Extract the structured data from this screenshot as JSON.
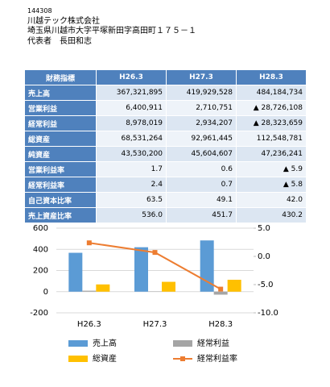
{
  "header": {
    "code": "144308",
    "company": "川越テック株式会社",
    "address": "埼玉県川越市大字平塚新田字高田町１７５－１",
    "representative": "代表者　長田和志"
  },
  "table": {
    "header": [
      "財務指標",
      "H26.3",
      "H27.3",
      "H28.3"
    ],
    "rows": [
      [
        "売上高",
        "367,321,895",
        "419,929,528",
        "484,184,734"
      ],
      [
        "営業利益",
        "6,400,911",
        "2,710,751",
        "▲ 28,726,108"
      ],
      [
        "経常利益",
        "8,978,019",
        "2,934,207",
        "▲ 28,323,659"
      ],
      [
        "総資産",
        "68,531,264",
        "92,961,445",
        "112,548,781"
      ],
      [
        "純資産",
        "43,530,200",
        "45,604,607",
        "47,236,241"
      ],
      [
        "営業利益率",
        "1.7",
        "0.6",
        "▲ 5.9"
      ],
      [
        "経常利益率",
        "2.4",
        "0.7",
        "▲ 5.8"
      ],
      [
        "自己資本比率",
        "63.5",
        "49.1",
        "42.0"
      ],
      [
        "売上資産比率",
        "536.0",
        "451.7",
        "430.2"
      ]
    ]
  },
  "chart_data": {
    "type": "bar",
    "categories": [
      "H26.3",
      "H27.3",
      "H28.3"
    ],
    "series": [
      {
        "name": "売上高",
        "color": "#5b9bd5",
        "values": [
          367.3,
          419.9,
          484.2
        ]
      },
      {
        "name": "経常利益",
        "color": "#a5a5a5",
        "values": [
          9.0,
          2.9,
          -28.3
        ]
      },
      {
        "name": "総資産",
        "color": "#ffc000",
        "values": [
          68.5,
          93.0,
          112.5
        ]
      },
      {
        "name": "経常利益率",
        "color": "#ed7d31",
        "type": "line",
        "axis": "y2",
        "values": [
          2.4,
          0.7,
          -5.8
        ]
      }
    ],
    "ylim": [
      -200,
      600
    ],
    "yticks": [
      -200,
      0,
      200,
      400,
      600
    ],
    "y2lim": [
      -10,
      5
    ],
    "y2ticks": [
      {
        "value": -10,
        "label": "-10.0"
      },
      {
        "value": -5,
        "label": "-5.0"
      },
      {
        "value": 0,
        "label": "0.0"
      },
      {
        "value": 5,
        "label": "5.0"
      }
    ],
    "grid": true
  }
}
